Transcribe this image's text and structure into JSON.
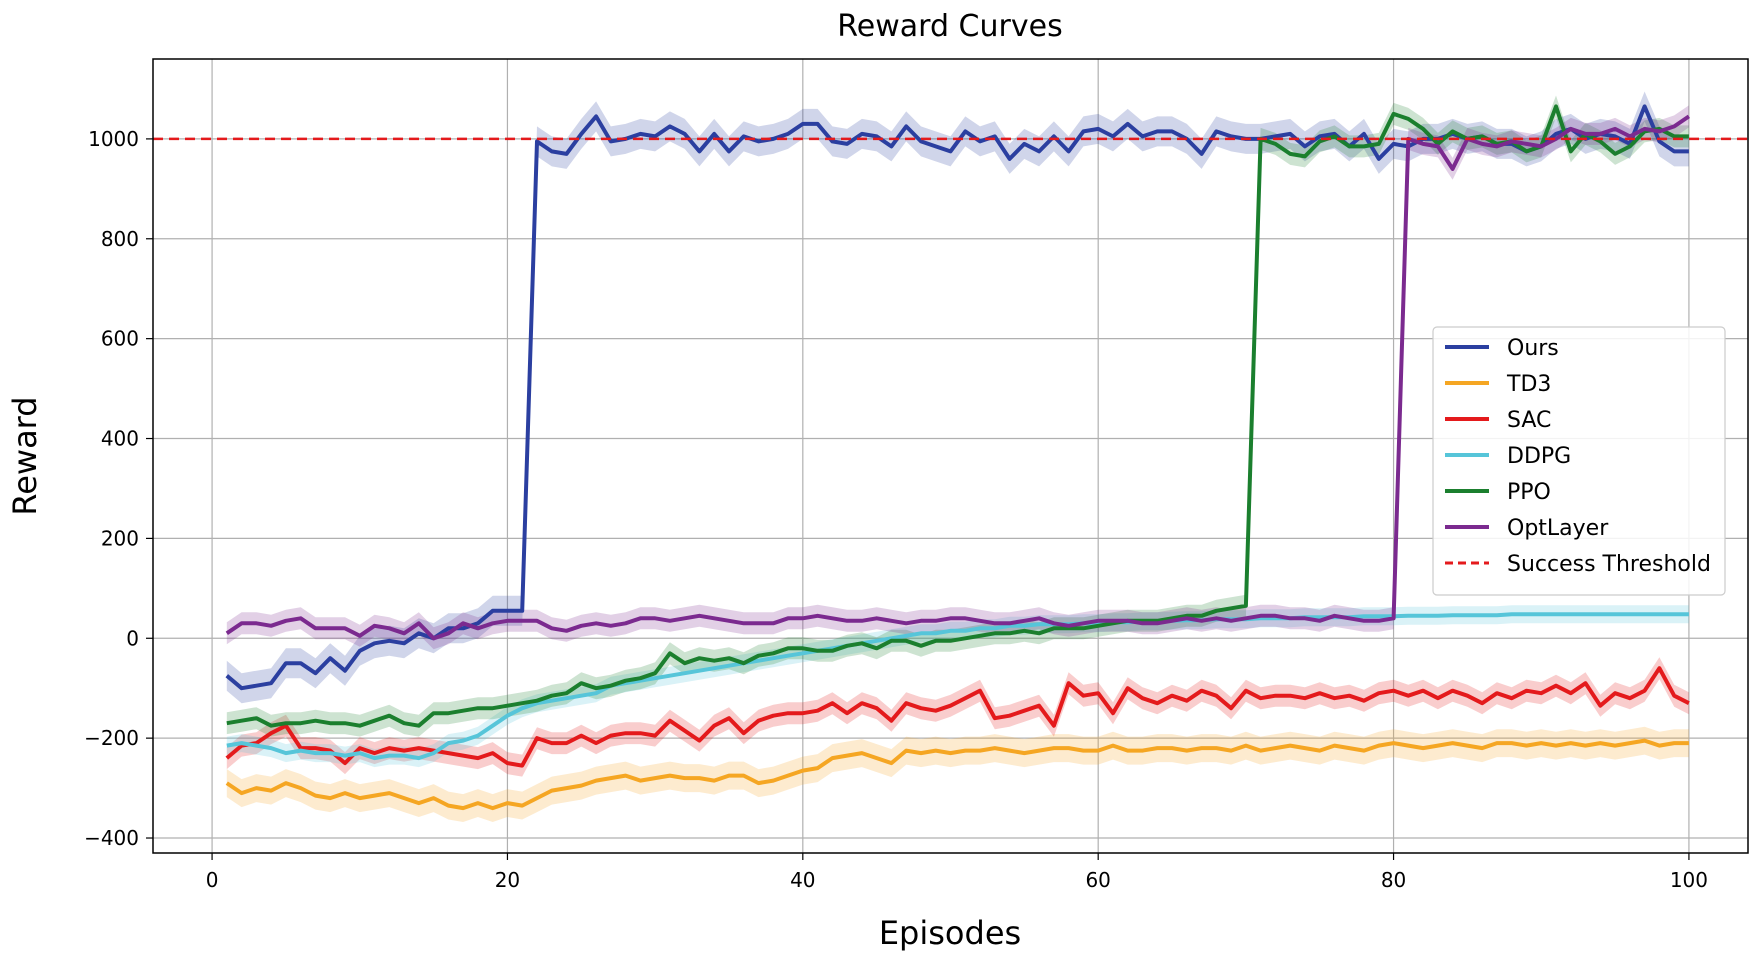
{
  "chart_data": {
    "type": "line",
    "title": "Reward Curves",
    "xlabel": "Episodes",
    "ylabel": "Reward",
    "xlim": [
      -4,
      104
    ],
    "ylim": [
      -430,
      1160
    ],
    "xticks": [
      0,
      20,
      40,
      60,
      80,
      100
    ],
    "yticks": [
      -400,
      -200,
      0,
      200,
      400,
      600,
      800,
      1000
    ],
    "grid": true,
    "legend_position": "center-right",
    "threshold": {
      "name": "Success Threshold",
      "value": 1000,
      "color": "#e41a1c"
    },
    "series": [
      {
        "name": "Ours",
        "color": "#2b3fa0",
        "band": 30,
        "x": [
          1,
          2,
          3,
          4,
          5,
          6,
          7,
          8,
          9,
          10,
          11,
          12,
          13,
          14,
          15,
          16,
          17,
          18,
          19,
          20,
          21,
          22,
          23,
          24,
          25,
          26,
          27,
          28,
          29,
          30,
          31,
          32,
          33,
          34,
          35,
          36,
          37,
          38,
          39,
          40,
          41,
          42,
          43,
          44,
          45,
          46,
          47,
          48,
          49,
          50,
          51,
          52,
          53,
          54,
          55,
          56,
          57,
          58,
          59,
          60,
          61,
          62,
          63,
          64,
          65,
          66,
          67,
          68,
          69,
          70,
          71,
          72,
          73,
          74,
          75,
          76,
          77,
          78,
          79,
          80,
          81,
          82,
          83,
          84,
          85,
          86,
          87,
          88,
          89,
          90,
          91,
          92,
          93,
          94,
          95,
          96,
          97,
          98,
          99,
          100
        ],
        "values": [
          -75,
          -100,
          -95,
          -90,
          -50,
          -50,
          -70,
          -40,
          -65,
          -25,
          -10,
          -5,
          -10,
          10,
          0,
          20,
          20,
          30,
          55,
          55,
          55,
          995,
          975,
          970,
          1010,
          1045,
          995,
          1000,
          1010,
          1005,
          1025,
          1010,
          975,
          1010,
          975,
          1005,
          995,
          1000,
          1010,
          1030,
          1030,
          995,
          990,
          1010,
          1005,
          985,
          1025,
          995,
          985,
          975,
          1015,
          995,
          1005,
          960,
          990,
          975,
          1005,
          975,
          1015,
          1020,
          1005,
          1030,
          1005,
          1015,
          1015,
          1000,
          970,
          1015,
          1005,
          1000,
          1000,
          1005,
          1010,
          985,
          1005,
          1010,
          985,
          1010,
          960,
          990,
          985,
          1000,
          1000,
          1010,
          1000,
          1005,
          990,
          990,
          975,
          985,
          1010,
          1020,
          1000,
          1010,
          1005,
          990,
          1065,
          995,
          975,
          975
        ]
      },
      {
        "name": "TD3",
        "color": "#f5a623",
        "band": 28,
        "x": [
          1,
          2,
          3,
          4,
          5,
          6,
          7,
          8,
          9,
          10,
          11,
          12,
          13,
          14,
          15,
          16,
          17,
          18,
          19,
          20,
          21,
          22,
          23,
          24,
          25,
          26,
          27,
          28,
          29,
          30,
          31,
          32,
          33,
          34,
          35,
          36,
          37,
          38,
          39,
          40,
          41,
          42,
          43,
          44,
          45,
          46,
          47,
          48,
          49,
          50,
          51,
          52,
          53,
          54,
          55,
          56,
          57,
          58,
          59,
          60,
          61,
          62,
          63,
          64,
          65,
          66,
          67,
          68,
          69,
          70,
          71,
          72,
          73,
          74,
          75,
          76,
          77,
          78,
          79,
          80,
          81,
          82,
          83,
          84,
          85,
          86,
          87,
          88,
          89,
          90,
          91,
          92,
          93,
          94,
          95,
          96,
          97,
          98,
          99,
          100
        ],
        "values": [
          -290,
          -310,
          -300,
          -305,
          -290,
          -300,
          -315,
          -320,
          -310,
          -320,
          -315,
          -310,
          -320,
          -330,
          -320,
          -335,
          -340,
          -330,
          -340,
          -330,
          -335,
          -320,
          -305,
          -300,
          -295,
          -285,
          -280,
          -275,
          -285,
          -280,
          -275,
          -280,
          -280,
          -285,
          -275,
          -275,
          -290,
          -285,
          -275,
          -265,
          -260,
          -240,
          -235,
          -230,
          -240,
          -250,
          -225,
          -230,
          -225,
          -230,
          -225,
          -225,
          -220,
          -225,
          -230,
          -225,
          -220,
          -220,
          -225,
          -225,
          -215,
          -225,
          -225,
          -220,
          -220,
          -225,
          -220,
          -220,
          -225,
          -215,
          -225,
          -220,
          -215,
          -220,
          -225,
          -215,
          -220,
          -225,
          -215,
          -210,
          -215,
          -220,
          -215,
          -210,
          -215,
          -220,
          -210,
          -210,
          -215,
          -210,
          -215,
          -210,
          -215,
          -210,
          -215,
          -210,
          -205,
          -215,
          -210,
          -210
        ]
      },
      {
        "name": "SAC",
        "color": "#e41a1c",
        "band": 22,
        "x": [
          1,
          2,
          3,
          4,
          5,
          6,
          7,
          8,
          9,
          10,
          11,
          12,
          13,
          14,
          15,
          16,
          17,
          18,
          19,
          20,
          21,
          22,
          23,
          24,
          25,
          26,
          27,
          28,
          29,
          30,
          31,
          32,
          33,
          34,
          35,
          36,
          37,
          38,
          39,
          40,
          41,
          42,
          43,
          44,
          45,
          46,
          47,
          48,
          49,
          50,
          51,
          52,
          53,
          54,
          55,
          56,
          57,
          58,
          59,
          60,
          61,
          62,
          63,
          64,
          65,
          66,
          67,
          68,
          69,
          70,
          71,
          72,
          73,
          74,
          75,
          76,
          77,
          78,
          79,
          80,
          81,
          82,
          83,
          84,
          85,
          86,
          87,
          88,
          89,
          90,
          91,
          92,
          93,
          94,
          95,
          96,
          97,
          98,
          99,
          100
        ],
        "values": [
          -240,
          -215,
          -210,
          -190,
          -175,
          -220,
          -220,
          -225,
          -250,
          -220,
          -230,
          -220,
          -225,
          -220,
          -225,
          -230,
          -235,
          -240,
          -230,
          -250,
          -255,
          -200,
          -210,
          -210,
          -195,
          -210,
          -195,
          -190,
          -190,
          -195,
          -165,
          -185,
          -205,
          -175,
          -160,
          -190,
          -165,
          -155,
          -150,
          -150,
          -145,
          -130,
          -150,
          -130,
          -140,
          -165,
          -130,
          -140,
          -145,
          -135,
          -120,
          -105,
          -160,
          -155,
          -145,
          -135,
          -175,
          -90,
          -115,
          -110,
          -150,
          -100,
          -120,
          -130,
          -115,
          -125,
          -105,
          -115,
          -140,
          -105,
          -120,
          -115,
          -115,
          -120,
          -110,
          -120,
          -115,
          -125,
          -110,
          -105,
          -115,
          -105,
          -120,
          -105,
          -115,
          -130,
          -110,
          -120,
          -105,
          -110,
          -95,
          -110,
          -90,
          -135,
          -110,
          -120,
          -105,
          -60,
          -115,
          -130
        ]
      },
      {
        "name": "DDPG",
        "color": "#56c5d9",
        "band": 18,
        "x": [
          1,
          2,
          3,
          4,
          5,
          6,
          7,
          8,
          9,
          10,
          11,
          12,
          13,
          14,
          15,
          16,
          17,
          18,
          19,
          20,
          21,
          22,
          23,
          24,
          25,
          26,
          27,
          28,
          29,
          30,
          31,
          32,
          33,
          34,
          35,
          36,
          37,
          38,
          39,
          40,
          41,
          42,
          43,
          44,
          45,
          46,
          47,
          48,
          49,
          50,
          51,
          52,
          53,
          54,
          55,
          56,
          57,
          58,
          59,
          60,
          61,
          62,
          63,
          64,
          65,
          66,
          67,
          68,
          69,
          70,
          71,
          72,
          73,
          74,
          75,
          76,
          77,
          78,
          79,
          80,
          81,
          82,
          83,
          84,
          85,
          86,
          87,
          88,
          89,
          90,
          91,
          92,
          93,
          94,
          95,
          96,
          97,
          98,
          99,
          100
        ],
        "values": [
          -215,
          -210,
          -215,
          -220,
          -230,
          -225,
          -230,
          -230,
          -235,
          -230,
          -240,
          -235,
          -235,
          -240,
          -230,
          -210,
          -205,
          -195,
          -175,
          -155,
          -140,
          -130,
          -125,
          -120,
          -115,
          -110,
          -95,
          -90,
          -85,
          -80,
          -75,
          -70,
          -65,
          -60,
          -55,
          -50,
          -45,
          -40,
          -35,
          -30,
          -25,
          -20,
          -15,
          -10,
          -5,
          0,
          5,
          10,
          10,
          15,
          15,
          20,
          20,
          25,
          25,
          28,
          28,
          28,
          30,
          30,
          32,
          32,
          34,
          34,
          35,
          36,
          36,
          38,
          38,
          38,
          40,
          40,
          40,
          42,
          42,
          42,
          42,
          44,
          44,
          44,
          45,
          45,
          45,
          46,
          46,
          46,
          46,
          48,
          48,
          48,
          48,
          48,
          48,
          48,
          48,
          48,
          48,
          48,
          48,
          48
        ]
      },
      {
        "name": "PPO",
        "color": "#1b7f2e",
        "band": 22,
        "x": [
          1,
          2,
          3,
          4,
          5,
          6,
          7,
          8,
          9,
          10,
          11,
          12,
          13,
          14,
          15,
          16,
          17,
          18,
          19,
          20,
          21,
          22,
          23,
          24,
          25,
          26,
          27,
          28,
          29,
          30,
          31,
          32,
          33,
          34,
          35,
          36,
          37,
          38,
          39,
          40,
          41,
          42,
          43,
          44,
          45,
          46,
          47,
          48,
          49,
          50,
          51,
          52,
          53,
          54,
          55,
          56,
          57,
          58,
          59,
          60,
          61,
          62,
          63,
          64,
          65,
          66,
          67,
          68,
          69,
          70,
          71,
          72,
          73,
          74,
          75,
          76,
          77,
          78,
          79,
          80,
          81,
          82,
          83,
          84,
          85,
          86,
          87,
          88,
          89,
          90,
          91,
          92,
          93,
          94,
          95,
          96,
          97,
          98,
          99,
          100
        ],
        "values": [
          -170,
          -165,
          -160,
          -175,
          -170,
          -170,
          -165,
          -170,
          -170,
          -175,
          -165,
          -155,
          -170,
          -175,
          -150,
          -150,
          -145,
          -140,
          -140,
          -135,
          -130,
          -125,
          -115,
          -110,
          -90,
          -100,
          -95,
          -85,
          -80,
          -70,
          -30,
          -50,
          -40,
          -45,
          -40,
          -50,
          -35,
          -30,
          -20,
          -20,
          -25,
          -25,
          -15,
          -10,
          -20,
          -5,
          -5,
          -15,
          -5,
          -5,
          0,
          5,
          10,
          10,
          15,
          10,
          20,
          20,
          20,
          25,
          30,
          35,
          35,
          35,
          40,
          45,
          45,
          55,
          60,
          65,
          1000,
          990,
          970,
          965,
          995,
          1005,
          985,
          985,
          990,
          1050,
          1040,
          1020,
          990,
          1015,
          1000,
          1005,
          990,
          995,
          975,
          985,
          1065,
          975,
          1010,
          995,
          970,
          985,
          1015,
          1020,
          1005,
          1005
        ]
      },
      {
        "name": "OptLayer",
        "color": "#7b2a8f",
        "band": 22,
        "x": [
          1,
          2,
          3,
          4,
          5,
          6,
          7,
          8,
          9,
          10,
          11,
          12,
          13,
          14,
          15,
          16,
          17,
          18,
          19,
          20,
          21,
          22,
          23,
          24,
          25,
          26,
          27,
          28,
          29,
          30,
          31,
          32,
          33,
          34,
          35,
          36,
          37,
          38,
          39,
          40,
          41,
          42,
          43,
          44,
          45,
          46,
          47,
          48,
          49,
          50,
          51,
          52,
          53,
          54,
          55,
          56,
          57,
          58,
          59,
          60,
          61,
          62,
          63,
          64,
          65,
          66,
          67,
          68,
          69,
          70,
          71,
          72,
          73,
          74,
          75,
          76,
          77,
          78,
          79,
          80,
          81,
          82,
          83,
          84,
          85,
          86,
          87,
          88,
          89,
          90,
          91,
          92,
          93,
          94,
          95,
          96,
          97,
          98,
          99,
          100
        ],
        "values": [
          10,
          30,
          30,
          25,
          35,
          40,
          20,
          20,
          20,
          5,
          25,
          20,
          10,
          30,
          0,
          10,
          30,
          20,
          30,
          35,
          35,
          35,
          20,
          15,
          25,
          30,
          25,
          30,
          40,
          40,
          35,
          40,
          45,
          40,
          35,
          30,
          30,
          30,
          40,
          40,
          45,
          40,
          35,
          35,
          40,
          35,
          30,
          35,
          35,
          40,
          40,
          35,
          30,
          30,
          35,
          40,
          30,
          25,
          30,
          35,
          35,
          35,
          30,
          30,
          35,
          40,
          35,
          40,
          35,
          40,
          45,
          45,
          40,
          40,
          35,
          45,
          40,
          35,
          35,
          40,
          1000,
          990,
          985,
          940,
          1000,
          990,
          985,
          995,
          990,
          985,
          1000,
          1020,
          1010,
          1010,
          1020,
          1005,
          1020,
          1015,
          1025,
          1045
        ]
      }
    ]
  }
}
